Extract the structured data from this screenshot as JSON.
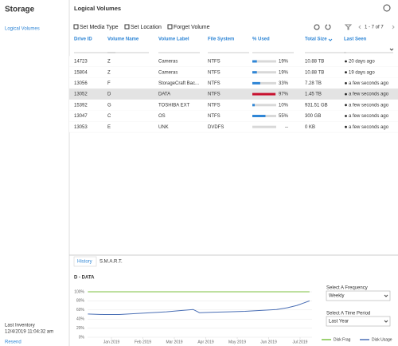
{
  "sidebar": {
    "title": "Storage",
    "nav": [
      "Logical Volumes"
    ],
    "last_inventory_label": "Last Inventory",
    "last_inventory": "12/4/2019 11:04:32 am",
    "resend": "Resend"
  },
  "header": {
    "title": "Logical Volumes"
  },
  "toolbar": {
    "actions": [
      "Set Media Type",
      "Set Location",
      "Forget Volume"
    ],
    "pagination": "1 - 7 of 7"
  },
  "table": {
    "columns": [
      "Drive ID",
      "Volume Name",
      "Volume Label",
      "File System",
      "% Used",
      "Total Size",
      "Last Seen"
    ],
    "rows": [
      [
        "14723",
        "Z",
        "Cameras",
        "NTFS",
        "10.88 TB",
        "20 days ago"
      ],
      [
        "15804",
        "Z",
        "Cameras",
        "NTFS",
        "10.88 TB",
        "19 days ago"
      ],
      [
        "13056",
        "F",
        "StorageCraft Bac...",
        "NTFS",
        "7.28 TB",
        "a few seconds ago"
      ],
      [
        "13052",
        "D",
        "DATA",
        "NTFS",
        "1.45 TB",
        "a few seconds ago"
      ],
      [
        "15392",
        "G",
        "TOSHIBA EXT",
        "NTFS",
        "931.51 GB",
        "a few seconds ago"
      ],
      [
        "13047",
        "C",
        "OS",
        "NTFS",
        "300 GB",
        "a few seconds ago"
      ],
      [
        "13053",
        "E",
        "UNK",
        "DVDFS",
        "0 KB",
        "a few seconds ago"
      ]
    ],
    "usage": {
      "values": [
        19,
        19,
        33,
        97,
        10,
        55,
        null
      ],
      "value_labels": [
        "19%",
        "19%",
        "33%",
        "97%",
        "10%",
        "55%",
        "--"
      ],
      "colors": [
        "#2f86d6",
        "#2f86d6",
        "#2f86d6",
        "#c8102e",
        "#2f86d6",
        "#2f86d6",
        "#2f86d6"
      ]
    },
    "selected_row": 3
  },
  "tabs": [
    "History",
    "S.M.A.R.T."
  ],
  "chart_data": {
    "type": "line",
    "title": "D - DATA",
    "x": [
      -0.75,
      -0.25,
      0.25,
      0.75,
      1.25,
      1.75,
      2.25,
      2.6,
      2.8,
      3.25,
      3.75,
      4.25,
      4.75,
      5.25,
      5.6,
      5.9,
      6.3
    ],
    "xlim": [
      -0.76,
      6.38
    ],
    "xticks": [
      {
        "value": 0,
        "label": "Jan 2019"
      },
      {
        "value": 1,
        "label": "Feb 2019"
      },
      {
        "value": 2,
        "label": "Mar 2019"
      },
      {
        "value": 3,
        "label": "Apr 2019"
      },
      {
        "value": 4,
        "label": "May 2019"
      },
      {
        "value": 5,
        "label": "Jun 2019"
      },
      {
        "value": 6,
        "label": "Jul 2019"
      }
    ],
    "ylim": [
      0,
      100
    ],
    "yticks": [
      {
        "value": 0,
        "label": "0%"
      },
      {
        "value": 20,
        "label": "20%"
      },
      {
        "value": 40,
        "label": "40%"
      },
      {
        "value": 60,
        "label": "60%"
      },
      {
        "value": 80,
        "label": "80%"
      },
      {
        "value": 100,
        "label": "100%"
      }
    ],
    "grid": true,
    "series": [
      {
        "name": "Disk Frag",
        "color": "#7cc242",
        "values": [
          100,
          100,
          100,
          100,
          100,
          100,
          100,
          100,
          100,
          100,
          100,
          100,
          100,
          100,
          100,
          100,
          100
        ]
      },
      {
        "name": "Disk Usage",
        "color": "#4a6fb5",
        "values": [
          51,
          50,
          50,
          52,
          54,
          56,
          59,
          61,
          54,
          55,
          56,
          57,
          59,
          61,
          65,
          70,
          80
        ]
      }
    ]
  },
  "controls": [
    {
      "label": "Select A Frequency",
      "value": "Weekly"
    },
    {
      "label": "Select A Time Period",
      "value": "Last Year"
    }
  ]
}
